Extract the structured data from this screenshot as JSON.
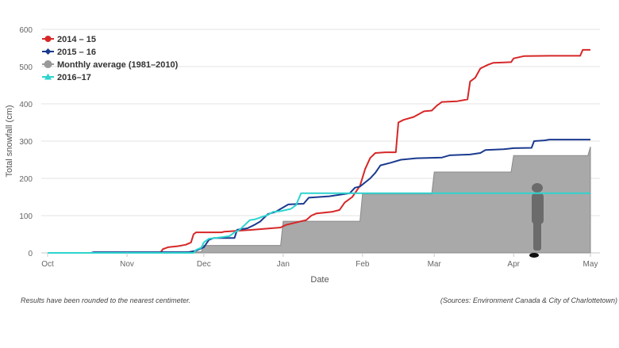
{
  "chart_data": {
    "type": "area",
    "xlabel": "Date",
    "ylabel": "Total snowfall (cm)",
    "ylim": [
      0,
      600
    ],
    "yticks": [
      0,
      100,
      200,
      300,
      400,
      500,
      600
    ],
    "xlim": [
      "2014-10-01",
      "2015-05-01"
    ],
    "xticks": [
      {
        "date": "2014-10-01",
        "label": "Oct"
      },
      {
        "date": "2014-11-01",
        "label": "Nov"
      },
      {
        "date": "2014-12-01",
        "label": "Dec"
      },
      {
        "date": "2015-01-01",
        "label": "Jan"
      },
      {
        "date": "2015-02-01",
        "label": "Feb"
      },
      {
        "date": "2015-03-01",
        "label": "Mar"
      },
      {
        "date": "2015-04-01",
        "label": "Apr"
      },
      {
        "date": "2015-05-01",
        "label": "May"
      }
    ],
    "grid": "horizontal",
    "legend_position": "top-left",
    "series": [
      {
        "name": "2014 – 15",
        "color": "#d62728",
        "marker": "circle",
        "style": "line",
        "points": [
          [
            "2014-10-01",
            0
          ],
          [
            "2014-11-14",
            0
          ],
          [
            "2014-11-15",
            10
          ],
          [
            "2014-11-17",
            15
          ],
          [
            "2014-11-21",
            18
          ],
          [
            "2014-11-24",
            22
          ],
          [
            "2014-11-26",
            28
          ],
          [
            "2014-11-27",
            50
          ],
          [
            "2014-11-28",
            55
          ],
          [
            "2014-12-08",
            55
          ],
          [
            "2014-12-09",
            57
          ],
          [
            "2014-12-20",
            62
          ],
          [
            "2014-12-31",
            68
          ],
          [
            "2015-01-02",
            75
          ],
          [
            "2015-01-08",
            85
          ],
          [
            "2015-01-10",
            88
          ],
          [
            "2015-01-12",
            100
          ],
          [
            "2015-01-14",
            106
          ],
          [
            "2015-01-20",
            110
          ],
          [
            "2015-01-23",
            115
          ],
          [
            "2015-01-25",
            135
          ],
          [
            "2015-01-28",
            150
          ],
          [
            "2015-01-31",
            180
          ],
          [
            "2015-02-02",
            225
          ],
          [
            "2015-02-04",
            255
          ],
          [
            "2015-02-06",
            268
          ],
          [
            "2015-02-10",
            270
          ],
          [
            "2015-02-14",
            270
          ],
          [
            "2015-02-15",
            350
          ],
          [
            "2015-02-17",
            357
          ],
          [
            "2015-02-21",
            365
          ],
          [
            "2015-02-25",
            380
          ],
          [
            "2015-02-28",
            382
          ],
          [
            "2015-03-02",
            395
          ],
          [
            "2015-03-04",
            405
          ],
          [
            "2015-03-10",
            407
          ],
          [
            "2015-03-14",
            412
          ],
          [
            "2015-03-15",
            460
          ],
          [
            "2015-03-17",
            470
          ],
          [
            "2015-03-19",
            495
          ],
          [
            "2015-03-22",
            505
          ],
          [
            "2015-03-24",
            510
          ],
          [
            "2015-03-31",
            512
          ],
          [
            "2015-04-01",
            522
          ],
          [
            "2015-04-05",
            528
          ],
          [
            "2015-04-15",
            529
          ],
          [
            "2015-04-27",
            529
          ],
          [
            "2015-04-28",
            545
          ],
          [
            "2015-05-01",
            545
          ]
        ]
      },
      {
        "name": "2015 – 16",
        "color": "#1a3a8f",
        "marker": "diamond",
        "style": "line",
        "points": [
          [
            "2014-10-01",
            0
          ],
          [
            "2014-10-18",
            0
          ],
          [
            "2014-10-19",
            2
          ],
          [
            "2014-11-25",
            2
          ],
          [
            "2014-11-28",
            6
          ],
          [
            "2014-12-01",
            15
          ],
          [
            "2014-12-03",
            35
          ],
          [
            "2014-12-05",
            40
          ],
          [
            "2014-12-13",
            40
          ],
          [
            "2014-12-14",
            62
          ],
          [
            "2014-12-18",
            66
          ],
          [
            "2014-12-21",
            76
          ],
          [
            "2014-12-23",
            84
          ],
          [
            "2014-12-26",
            104
          ],
          [
            "2014-12-29",
            110
          ],
          [
            "2015-01-03",
            130
          ],
          [
            "2015-01-09",
            132
          ],
          [
            "2015-01-11",
            148
          ],
          [
            "2015-01-19",
            152
          ],
          [
            "2015-01-27",
            160
          ],
          [
            "2015-01-29",
            175
          ],
          [
            "2015-01-31",
            178
          ],
          [
            "2015-02-04",
            200
          ],
          [
            "2015-02-06",
            215
          ],
          [
            "2015-02-08",
            235
          ],
          [
            "2015-02-12",
            242
          ],
          [
            "2015-02-16",
            250
          ],
          [
            "2015-02-22",
            254
          ],
          [
            "2015-03-04",
            256
          ],
          [
            "2015-03-07",
            262
          ],
          [
            "2015-03-15",
            264
          ],
          [
            "2015-03-19",
            268
          ],
          [
            "2015-03-21",
            276
          ],
          [
            "2015-03-28",
            278
          ],
          [
            "2015-04-01",
            281
          ],
          [
            "2015-04-08",
            282
          ],
          [
            "2015-04-09",
            300
          ],
          [
            "2015-04-13",
            302
          ],
          [
            "2015-04-15",
            304
          ],
          [
            "2015-05-01",
            304
          ]
        ]
      },
      {
        "name": "Monthly average (1981–2010)",
        "color": "#999999",
        "marker": "circle",
        "style": "step-area",
        "points": [
          [
            "2014-10-01",
            0
          ],
          [
            "2014-11-01",
            2
          ],
          [
            "2014-11-30",
            3
          ],
          [
            "2014-12-01",
            20
          ],
          [
            "2014-12-31",
            20
          ],
          [
            "2015-01-01",
            85
          ],
          [
            "2015-01-31",
            85
          ],
          [
            "2015-02-01",
            158
          ],
          [
            "2015-02-28",
            158
          ],
          [
            "2015-03-01",
            217
          ],
          [
            "2015-03-31",
            217
          ],
          [
            "2015-04-01",
            261
          ],
          [
            "2015-04-30",
            261
          ],
          [
            "2015-05-01",
            285
          ]
        ]
      },
      {
        "name": "2016–17",
        "color": "#2dd4cf",
        "marker": "triangle",
        "style": "line",
        "points": [
          [
            "2014-10-01",
            0
          ],
          [
            "2014-11-27",
            0
          ],
          [
            "2014-11-28",
            8
          ],
          [
            "2014-11-30",
            14
          ],
          [
            "2014-12-01",
            28
          ],
          [
            "2014-12-03",
            38
          ],
          [
            "2014-12-08",
            42
          ],
          [
            "2014-12-11",
            45
          ],
          [
            "2014-12-13",
            55
          ],
          [
            "2014-12-15",
            62
          ],
          [
            "2014-12-17",
            75
          ],
          [
            "2014-12-19",
            88
          ],
          [
            "2014-12-21",
            90
          ],
          [
            "2014-12-23",
            95
          ],
          [
            "2014-12-26",
            102
          ],
          [
            "2014-12-28",
            110
          ],
          [
            "2014-12-31",
            112
          ],
          [
            "2015-01-04",
            118
          ],
          [
            "2015-01-06",
            128
          ],
          [
            "2015-01-08",
            160
          ],
          [
            "2015-01-25",
            160
          ],
          [
            "2015-02-01",
            160
          ],
          [
            "2015-05-01",
            160
          ]
        ]
      }
    ]
  },
  "footnote_left": "Results have been rounded to the nearest centimeter.",
  "footnote_right": "(Sources: Environment Canada & City of Charlottetown)"
}
